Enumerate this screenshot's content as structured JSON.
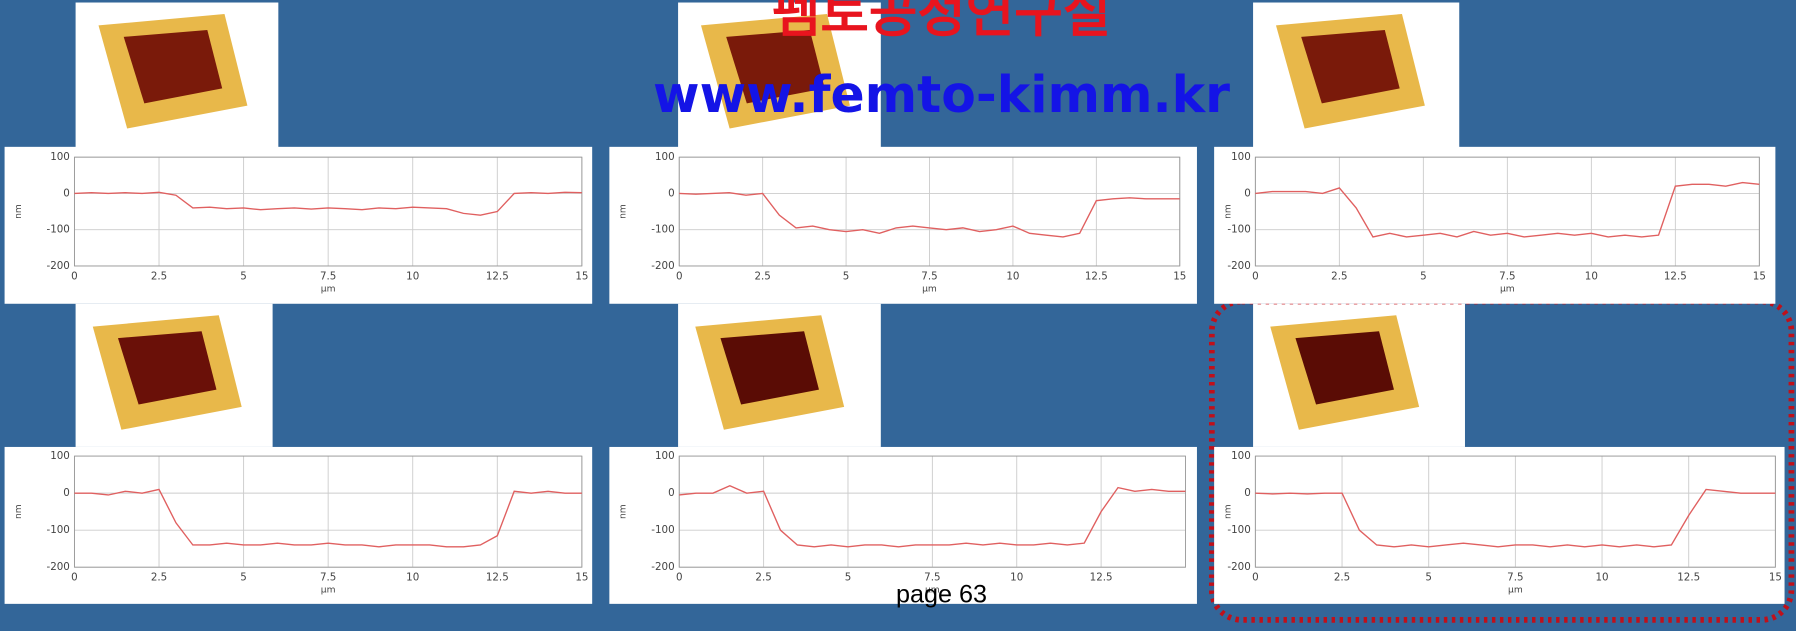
{
  "header": {
    "title": "펨토공정연구실",
    "url": "www.femto-kimm.kr"
  },
  "footer": {
    "page": "page 63"
  },
  "chart_data": [
    {
      "type": "line",
      "x_label": "μm",
      "y_label": "nm",
      "xlim": [
        0,
        15
      ],
      "ylim": [
        -200,
        100
      ],
      "xticks": [
        0,
        2.5,
        5,
        7.5,
        10,
        12.5,
        15
      ],
      "yticks": [
        -200,
        -100,
        0,
        100
      ],
      "grid": true,
      "x": [
        0,
        0.5,
        1,
        1.5,
        2,
        2.5,
        3,
        3.5,
        4,
        4.5,
        5,
        5.5,
        6,
        6.5,
        7,
        7.5,
        8,
        8.5,
        9,
        9.5,
        10,
        10.5,
        11,
        11.5,
        12,
        12.5,
        13,
        13.5,
        14,
        14.5,
        15
      ],
      "series": [
        {
          "name": "profile",
          "color": "#e06060",
          "values": [
            0,
            2,
            0,
            2,
            0,
            3,
            -5,
            -40,
            -38,
            -42,
            -40,
            -45,
            -42,
            -40,
            -43,
            -40,
            -42,
            -45,
            -40,
            -42,
            -38,
            -40,
            -42,
            -55,
            -60,
            -50,
            0,
            2,
            0,
            3,
            2
          ]
        }
      ]
    },
    {
      "type": "line",
      "x_label": "μm",
      "y_label": "nm",
      "xlim": [
        0,
        15
      ],
      "ylim": [
        -200,
        100
      ],
      "xticks": [
        0,
        2.5,
        5,
        7.5,
        10,
        12.5,
        15
      ],
      "yticks": [
        -200,
        -100,
        0,
        100
      ],
      "grid": true,
      "x": [
        0,
        0.5,
        1,
        1.5,
        2,
        2.5,
        3,
        3.5,
        4,
        4.5,
        5,
        5.5,
        6,
        6.5,
        7,
        7.5,
        8,
        8.5,
        9,
        9.5,
        10,
        10.5,
        11,
        11.5,
        12,
        12.5,
        13,
        13.5,
        14,
        14.5,
        15
      ],
      "series": [
        {
          "name": "profile",
          "color": "#e06060",
          "values": [
            0,
            -2,
            0,
            2,
            -5,
            0,
            -60,
            -95,
            -90,
            -100,
            -105,
            -100,
            -110,
            -95,
            -90,
            -95,
            -100,
            -95,
            -105,
            -100,
            -90,
            -110,
            -115,
            -120,
            -110,
            -20,
            -15,
            -12,
            -15,
            -15,
            -15
          ]
        }
      ]
    },
    {
      "type": "line",
      "x_label": "μm",
      "y_label": "nm",
      "xlim": [
        0,
        15
      ],
      "ylim": [
        -200,
        100
      ],
      "xticks": [
        0,
        2.5,
        5,
        7.5,
        10,
        12.5,
        15
      ],
      "yticks": [
        -200,
        -100,
        0,
        100
      ],
      "grid": true,
      "x": [
        0,
        0.5,
        1,
        1.5,
        2,
        2.5,
        3,
        3.5,
        4,
        4.5,
        5,
        5.5,
        6,
        6.5,
        7,
        7.5,
        8,
        8.5,
        9,
        9.5,
        10,
        10.5,
        11,
        11.5,
        12,
        12.5,
        13,
        13.5,
        14,
        14.5,
        15
      ],
      "series": [
        {
          "name": "profile",
          "color": "#e06060",
          "values": [
            0,
            5,
            5,
            5,
            0,
            15,
            -40,
            -120,
            -110,
            -120,
            -115,
            -110,
            -120,
            -105,
            -115,
            -110,
            -120,
            -115,
            -110,
            -115,
            -110,
            -120,
            -115,
            -120,
            -115,
            20,
            25,
            25,
            20,
            30,
            25
          ]
        }
      ]
    },
    {
      "type": "line",
      "x_label": "μm",
      "y_label": "nm",
      "xlim": [
        0,
        15
      ],
      "ylim": [
        -200,
        100
      ],
      "xticks": [
        0,
        2.5,
        5,
        7.5,
        10,
        12.5,
        15
      ],
      "yticks": [
        -200,
        -100,
        0,
        100
      ],
      "grid": true,
      "x": [
        0,
        0.5,
        1,
        1.5,
        2,
        2.5,
        3,
        3.5,
        4,
        4.5,
        5,
        5.5,
        6,
        6.5,
        7,
        7.5,
        8,
        8.5,
        9,
        9.5,
        10,
        10.5,
        11,
        11.5,
        12,
        12.5,
        13,
        13.5,
        14,
        14.5,
        15
      ],
      "series": [
        {
          "name": "profile",
          "color": "#e06060",
          "values": [
            0,
            0,
            -5,
            5,
            0,
            10,
            -80,
            -140,
            -140,
            -135,
            -140,
            -140,
            -135,
            -140,
            -140,
            -135,
            -140,
            -140,
            -145,
            -140,
            -140,
            -140,
            -145,
            -145,
            -140,
            -115,
            5,
            0,
            5,
            0,
            0
          ]
        }
      ]
    },
    {
      "type": "line",
      "x_label": "μm",
      "y_label": "nm",
      "xlim": [
        0,
        15
      ],
      "ylim": [
        -200,
        100
      ],
      "xticks": [
        0,
        2.5,
        5,
        7.5,
        10,
        12.5
      ],
      "yticks": [
        -200,
        -100,
        0,
        100
      ],
      "grid": true,
      "x": [
        0,
        0.5,
        1,
        1.5,
        2,
        2.5,
        3,
        3.5,
        4,
        4.5,
        5,
        5.5,
        6,
        6.5,
        7,
        7.5,
        8,
        8.5,
        9,
        9.5,
        10,
        10.5,
        11,
        11.5,
        12,
        12.5,
        13,
        13.5,
        14,
        14.5,
        15
      ],
      "series": [
        {
          "name": "profile",
          "color": "#e06060",
          "values": [
            -5,
            0,
            0,
            20,
            0,
            5,
            -100,
            -140,
            -145,
            -140,
            -145,
            -140,
            -140,
            -145,
            -140,
            -140,
            -140,
            -135,
            -140,
            -135,
            -140,
            -140,
            -135,
            -140,
            -135,
            -50,
            15,
            5,
            10,
            5,
            5
          ]
        }
      ]
    },
    {
      "type": "line",
      "x_label": "μm",
      "y_label": "nm",
      "xlim": [
        0,
        15
      ],
      "ylim": [
        -200,
        100
      ],
      "xticks": [
        0,
        2.5,
        5,
        7.5,
        10,
        12.5,
        15
      ],
      "yticks": [
        -200,
        -100,
        0,
        100
      ],
      "grid": true,
      "x": [
        0,
        0.5,
        1,
        1.5,
        2,
        2.5,
        3,
        3.5,
        4,
        4.5,
        5,
        5.5,
        6,
        6.5,
        7,
        7.5,
        8,
        8.5,
        9,
        9.5,
        10,
        10.5,
        11,
        11.5,
        12,
        12.5,
        13,
        13.5,
        14,
        14.5,
        15
      ],
      "series": [
        {
          "name": "profile",
          "color": "#e06060",
          "values": [
            0,
            -2,
            0,
            -2,
            0,
            0,
            -100,
            -140,
            -145,
            -140,
            -145,
            -140,
            -135,
            -140,
            -145,
            -140,
            -140,
            -145,
            -140,
            -145,
            -140,
            -145,
            -140,
            -145,
            -140,
            -60,
            10,
            5,
            0,
            0,
            0
          ]
        }
      ]
    }
  ]
}
